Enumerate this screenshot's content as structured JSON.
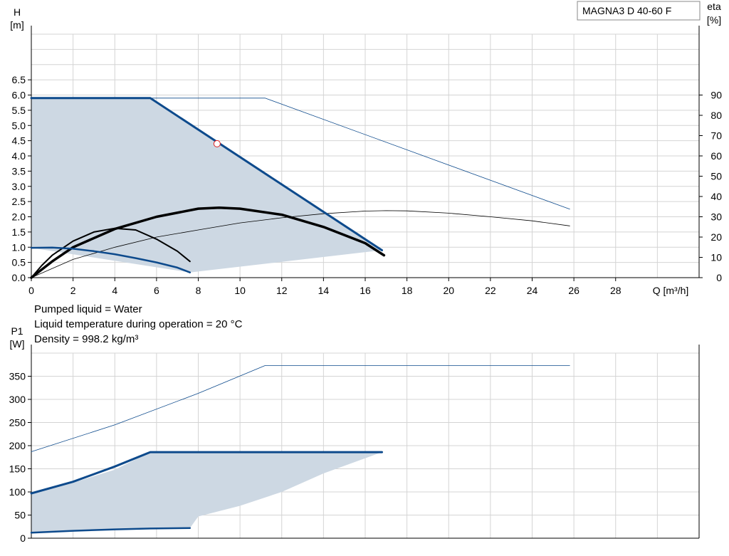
{
  "pump_model": "MAGNA3 D 40-60 F",
  "info_lines": [
    "Pumped liquid = Water",
    "Liquid temperature during operation = 20 °C",
    "Density = 998.2 kg/m³"
  ],
  "colors": {
    "range_fill": "#cdd8e3",
    "head_curve": "#0d4a8c",
    "efficiency_curve": "#000000",
    "grid": "#d4d4d4",
    "duty_point": "#e02020"
  },
  "chart_data": [
    {
      "type": "line",
      "name": "head-chart",
      "ylabel": "H",
      "yunit": "[m]",
      "y2label": "eta",
      "y2unit": "[%]",
      "xlabel": "Q [m³/h]",
      "xlim": [
        0,
        32
      ],
      "ylim": [
        0,
        8
      ],
      "y2lim": [
        0,
        120
      ],
      "xticks": [
        0,
        2,
        4,
        6,
        8,
        10,
        12,
        14,
        16,
        18,
        20,
        22,
        24,
        26,
        28
      ],
      "yticks": [
        0.0,
        0.5,
        1.0,
        1.5,
        2.0,
        2.5,
        3.0,
        3.5,
        4.0,
        4.5,
        5.0,
        5.5,
        6.0,
        6.5
      ],
      "y2ticks": [
        0,
        10,
        20,
        30,
        40,
        50,
        60,
        70,
        80,
        90
      ],
      "grid": true,
      "operating_range": [
        [
          0,
          5.9
        ],
        [
          5.7,
          5.9
        ],
        [
          16.8,
          0.9
        ],
        [
          7.6,
          0.17
        ],
        [
          0,
          0.98
        ]
      ],
      "head_curves": [
        {
          "label": "max",
          "x": [
            0,
            5.7,
            16.8
          ],
          "y": [
            5.9,
            5.9,
            0.9
          ],
          "width": 3
        },
        {
          "label": "min",
          "x": [
            0,
            1,
            2,
            3,
            4,
            5,
            6,
            7,
            7.6
          ],
          "y": [
            0.98,
            0.99,
            0.95,
            0.87,
            0.77,
            0.64,
            0.5,
            0.33,
            0.17
          ],
          "width": 2.5
        },
        {
          "label": "twin",
          "x": [
            0,
            11.2,
            25.8
          ],
          "y": [
            5.9,
            5.9,
            2.25
          ],
          "width": 0.8
        }
      ],
      "efficiency_curves": [
        {
          "label": "max",
          "x": [
            0,
            1,
            2,
            4,
            6,
            8,
            9,
            10,
            12,
            14,
            16,
            16.9
          ],
          "y": [
            0,
            8,
            15,
            24,
            30,
            34,
            34.5,
            34,
            31,
            25,
            17,
            11
          ],
          "width": 3.5
        },
        {
          "label": "min",
          "x": [
            0,
            0.5,
            1,
            2,
            3,
            4,
            5,
            6,
            7,
            7.6
          ],
          "y": [
            0,
            6,
            11,
            18,
            22.5,
            24.3,
            23.5,
            19,
            13,
            8
          ],
          "width": 2
        },
        {
          "label": "twin",
          "x": [
            0,
            2,
            4,
            6,
            8,
            10,
            12,
            14,
            16,
            17,
            18,
            20,
            22,
            24,
            25.8
          ],
          "y": [
            0,
            9,
            15,
            20,
            23.5,
            27,
            29.5,
            31.5,
            32.8,
            33,
            32.9,
            31.8,
            30,
            28,
            25.5
          ],
          "width": 0.8
        }
      ],
      "duty_point": {
        "x": 8.9,
        "y": 4.4
      }
    },
    {
      "type": "line",
      "name": "power-chart",
      "ylabel": "P1",
      "yunit": "[W]",
      "xlim": [
        0,
        32
      ],
      "ylim": [
        0,
        400
      ],
      "xticks": [
        0,
        2,
        4,
        6,
        8,
        10,
        12,
        14,
        16,
        18,
        20,
        22,
        24,
        26,
        28
      ],
      "yticks": [
        0,
        50,
        100,
        150,
        200,
        250,
        300,
        350
      ],
      "grid": true,
      "operating_range": [
        [
          0,
          97
        ],
        [
          2,
          120
        ],
        [
          4,
          148
        ],
        [
          5.7,
          186
        ],
        [
          16.8,
          186
        ],
        [
          14,
          140
        ],
        [
          12,
          100
        ],
        [
          10,
          70
        ],
        [
          8,
          47
        ],
        [
          7.6,
          22
        ],
        [
          5.7,
          21
        ],
        [
          3,
          17
        ],
        [
          0,
          12
        ]
      ],
      "power_curves": [
        {
          "label": "max",
          "x": [
            0,
            2,
            4,
            5.7,
            16.8
          ],
          "y": [
            97,
            122,
            155,
            186,
            186
          ],
          "width": 3
        },
        {
          "label": "min",
          "x": [
            0,
            2,
            4,
            5.7,
            7.6
          ],
          "y": [
            12,
            16,
            19,
            21,
            22
          ],
          "width": 2.5
        },
        {
          "label": "twin",
          "x": [
            0,
            4,
            8,
            11.2,
            25.8
          ],
          "y": [
            187,
            245,
            313,
            373,
            373
          ],
          "width": 0.8
        }
      ]
    }
  ]
}
